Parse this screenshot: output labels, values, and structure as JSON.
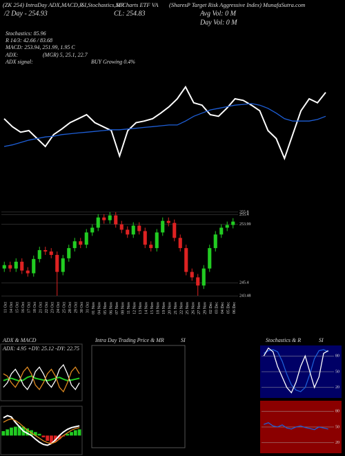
{
  "header": {
    "line1a": "(ZK 254) IntraDay ADX,MACD,R",
    "line1b": "SI,Stochastics,MR",
    "line1c": "SI Charts ETF VA",
    "line1d": "(SharesP Target Risk Aggressive Index) MunafaSutra.com",
    "day": "/2 Day - 254.93",
    "close": "CL: 254.83",
    "avg_vol": "Avg Vol: 0   M",
    "day_vol": "Day Vol: 0   M",
    "stoch": "Stochastics: 85.96",
    "rsi": "R 14/3: 42.66 / 83.68",
    "macd": "MACD: 253.94, 251.99, 1.95 C",
    "adx": "ADX:",
    "adx_vals": "(MGR) 5, 25.1, 22.7",
    "adx_signal": "ADX  signal:",
    "signal": "BUY Growing 0.4%"
  },
  "panels": {
    "adx_title": "ADX  & MACD",
    "adx_vals": "ADX: 4.95  +DY: 25.12  -DY: 22.75",
    "intraday_title": "Intra  Day Trading Price  & MR",
    "intraday_si": "SI",
    "stoch_title": "Stochastics & R",
    "stoch_si": "SI"
  },
  "chart_data": [
    {
      "type": "line",
      "ylim": [
        0,
        100
      ],
      "series": [
        {
          "color": "#ffffff",
          "values": [
            55,
            45,
            38,
            40,
            30,
            20,
            35,
            42,
            50,
            55,
            60,
            50,
            45,
            40,
            8,
            40,
            50,
            52,
            55,
            62,
            70,
            80,
            95,
            75,
            72,
            60,
            58,
            68,
            80,
            78,
            72,
            65,
            40,
            30,
            5,
            35,
            65,
            80,
            75,
            88
          ]
        },
        {
          "color": "#1e5fd8",
          "values": [
            20,
            22,
            25,
            28,
            30,
            32,
            33,
            35,
            36,
            37,
            38,
            39,
            40,
            41,
            41,
            42,
            43,
            44,
            45,
            46,
            47,
            47,
            52,
            58,
            62,
            66,
            68,
            70,
            72,
            73,
            74,
            72,
            68,
            62,
            55,
            52,
            52,
            52,
            54,
            58
          ]
        }
      ]
    },
    {
      "type": "candlestick",
      "up_color": "#22cc22",
      "down_color": "#dd2222",
      "ylim": [
        243.3,
        256.5
      ],
      "yticks": [
        255.8,
        255.4,
        253.99,
        245.4,
        243.48
      ],
      "categories": [
        "11 Oct",
        "14 Oct",
        "15 Oct",
        "16 Oct",
        "17 Oct",
        "18 Oct",
        "21 Oct",
        "22 Oct",
        "23 Oct",
        "24 Oct",
        "25 Oct",
        "28 Oct",
        "29 Oct",
        "30 Oct",
        "31 Oct",
        "01 Nov",
        "04 Nov",
        "05 Nov",
        "06 Nov",
        "07 Nov",
        "08 Nov",
        "11 Nov",
        "12 Nov",
        "13 Nov",
        "14 Nov",
        "15 Nov",
        "18 Nov",
        "19 Nov",
        "20 Nov",
        "21 Nov",
        "22 Nov",
        "25 Nov",
        "26 Nov",
        "27 Nov",
        "29 Nov",
        "02 Dec",
        "03 Dec",
        "04 Dec",
        "05 Dec",
        "06 Dec"
      ],
      "open": [
        247.5,
        248.0,
        247.5,
        248.5,
        247.2,
        246.8,
        248.9,
        250.2,
        250.0,
        249.5,
        247.0,
        249.0,
        250.5,
        251.5,
        251.0,
        252.8,
        253.5,
        255.0,
        254.6,
        255.3,
        254.0,
        253.2,
        252.5,
        253.8,
        253.0,
        251.0,
        250.5,
        252.8,
        254.5,
        254.2,
        252.0,
        250.5,
        247.0,
        246.2,
        245.0,
        247.5,
        250.5,
        252.5,
        253.5,
        253.9
      ],
      "high": [
        248.5,
        248.5,
        249.0,
        249.0,
        247.7,
        249.4,
        250.7,
        250.7,
        250.5,
        250.0,
        249.5,
        251.0,
        252.0,
        252.0,
        253.3,
        254.0,
        255.5,
        255.5,
        255.8,
        255.8,
        254.5,
        253.7,
        254.3,
        254.3,
        253.5,
        251.5,
        253.3,
        255.0,
        255.0,
        254.7,
        252.5,
        251.0,
        247.5,
        246.7,
        248.0,
        251.0,
        253.0,
        254.0,
        254.4,
        254.9
      ],
      "low": [
        247.0,
        247.0,
        247.0,
        246.7,
        246.3,
        246.3,
        248.4,
        249.5,
        249.0,
        243.5,
        246.5,
        248.5,
        250.0,
        250.5,
        250.5,
        252.3,
        253.0,
        254.1,
        254.1,
        253.5,
        252.7,
        252.0,
        252.0,
        252.5,
        250.5,
        250.0,
        250.0,
        252.3,
        253.7,
        251.5,
        250.0,
        246.5,
        245.7,
        243.5,
        244.5,
        247.0,
        250.0,
        252.0,
        253.0,
        253.4
      ],
      "close": [
        248.0,
        247.5,
        248.5,
        247.2,
        246.8,
        248.9,
        250.2,
        250.0,
        249.5,
        247.0,
        249.0,
        250.5,
        251.5,
        251.0,
        252.8,
        253.5,
        255.0,
        254.6,
        255.3,
        254.0,
        253.2,
        252.5,
        253.8,
        253.0,
        251.0,
        250.5,
        252.8,
        254.5,
        254.2,
        252.0,
        250.5,
        247.0,
        246.2,
        245.0,
        247.5,
        250.5,
        252.5,
        253.5,
        253.9,
        254.4
      ]
    },
    {
      "type": "line",
      "ylim": [
        0,
        100
      ],
      "series": [
        {
          "color": "#22cc22",
          "values": [
            45,
            48,
            50,
            47,
            44,
            46,
            52,
            55,
            50,
            48,
            46,
            45,
            47,
            50,
            52,
            48,
            45,
            46,
            48,
            50
          ]
        },
        {
          "color": "#ffffff",
          "values": [
            30,
            40,
            60,
            70,
            55,
            35,
            25,
            40,
            65,
            75,
            60,
            40,
            30,
            45,
            70,
            80,
            60,
            35,
            25,
            40
          ]
        },
        {
          "color": "#e08a20",
          "values": [
            60,
            55,
            40,
            30,
            45,
            65,
            75,
            60,
            35,
            25,
            40,
            60,
            70,
            55,
            30,
            20,
            40,
            65,
            75,
            60
          ]
        }
      ]
    },
    {
      "type": "bar",
      "up_color": "#22cc22",
      "down_color": "#dd2222",
      "ylim": [
        -40,
        60
      ],
      "values": [
        10,
        14,
        18,
        20,
        22,
        20,
        16,
        12,
        8,
        4,
        -4,
        -12,
        -18,
        -14,
        -8,
        -2,
        4,
        8,
        12,
        14
      ],
      "series": [
        {
          "color": "#ffffff",
          "values": [
            40,
            45,
            42,
            30,
            20,
            10,
            5,
            0,
            -8,
            -15,
            -20,
            -22,
            -18,
            -10,
            0,
            8,
            14,
            18,
            20,
            22
          ]
        },
        {
          "color": "#e08a20",
          "values": [
            30,
            35,
            38,
            34,
            28,
            20,
            12,
            6,
            0,
            -6,
            -12,
            -16,
            -18,
            -15,
            -8,
            0,
            6,
            12,
            16,
            18
          ]
        }
      ]
    },
    {
      "type": "line",
      "background": "#000066",
      "ylim": [
        0,
        100
      ],
      "yticks": [
        80,
        50,
        20
      ],
      "series": [
        {
          "color": "#1e5fd8",
          "values": [
            85,
            90,
            92,
            88,
            70,
            45,
            25,
            15,
            12,
            20,
            45,
            75,
            90,
            92,
            88
          ]
        },
        {
          "color": "#ffffff",
          "values": [
            80,
            95,
            88,
            60,
            40,
            20,
            10,
            30,
            60,
            80,
            50,
            20,
            40,
            85,
            90
          ]
        }
      ]
    },
    {
      "type": "line",
      "background": "#8b0000",
      "ylim": [
        0,
        100
      ],
      "yticks": [
        80,
        50,
        20
      ],
      "series": [
        {
          "color": "#1e5fd8",
          "values": [
            55,
            58,
            52,
            50,
            54,
            48,
            46,
            50,
            52,
            49,
            47,
            45,
            50,
            48,
            46
          ]
        }
      ]
    }
  ]
}
